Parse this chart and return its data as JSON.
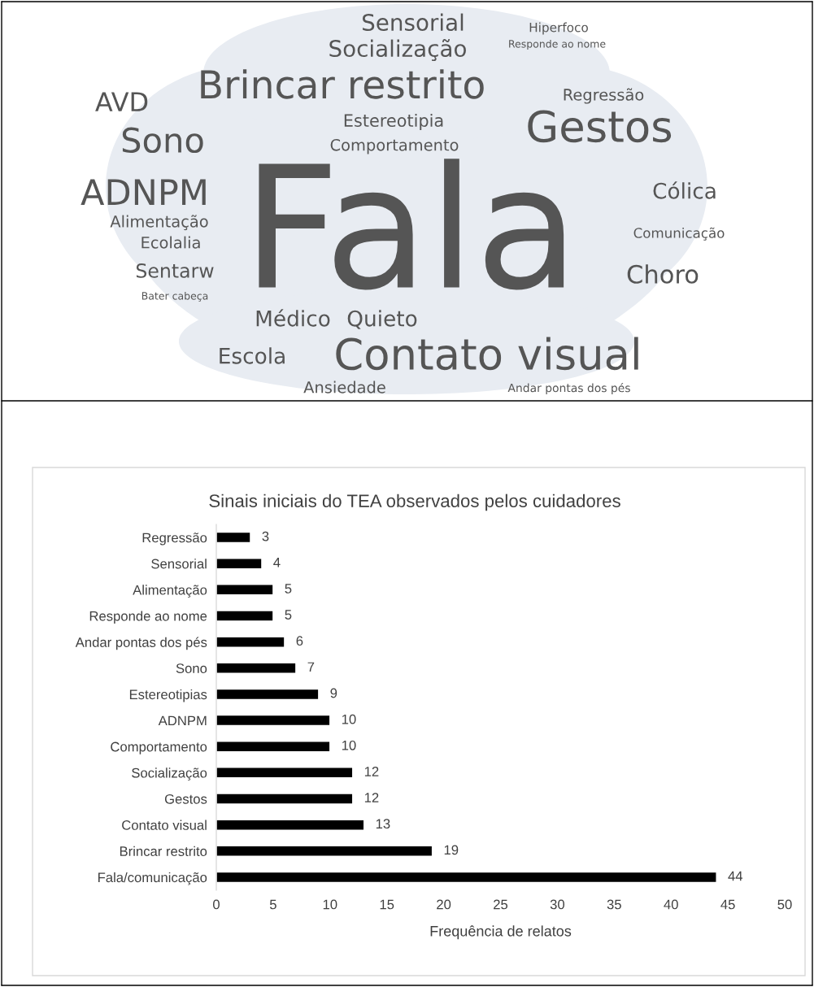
{
  "chart_data": [
    {
      "type": "other",
      "annotations": [
        "Sensorial",
        "Socialização",
        "Hiperfoco",
        "Responde ao nome",
        "Brincar restrito",
        "Regressão",
        "AVD",
        "Estereotipia",
        "Gestos",
        "Sono",
        "Comportamento",
        "ADNPM",
        "Choro",
        "Cólica",
        "Fala",
        "Sentarw",
        "Comunicação",
        "Alimentação",
        "Bater cabeça",
        "Ecolalia",
        "Médico",
        "Quieto",
        "Escola",
        "Contato visual",
        "Ansiedade",
        "Andar pontas dos pés"
      ]
    },
    {
      "type": "bar",
      "orientation": "horizontal",
      "title": "Sinais iniciais do TEA observados pelos cuidadores",
      "xlabel": "Frequência de relatos",
      "categories": [
        "Regressão",
        "Sensorial",
        "Alimentação",
        "Responde ao nome",
        "Andar pontas dos pés",
        "Sono",
        "Estereotipias",
        "ADNPM",
        "Comportamento",
        "Socialização",
        "Gestos",
        "Contato visual",
        "Brincar restrito",
        "Fala/comunicação"
      ],
      "values": [
        3,
        4,
        5,
        5,
        6,
        7,
        9,
        10,
        10,
        12,
        12,
        13,
        19,
        44
      ],
      "color": "#000000",
      "xlim": [
        0,
        50
      ],
      "xticks": [
        0,
        5,
        10,
        15,
        20,
        25,
        30,
        35,
        40,
        45,
        50
      ],
      "data_labels": true,
      "grid": false,
      "legend": false
    }
  ]
}
